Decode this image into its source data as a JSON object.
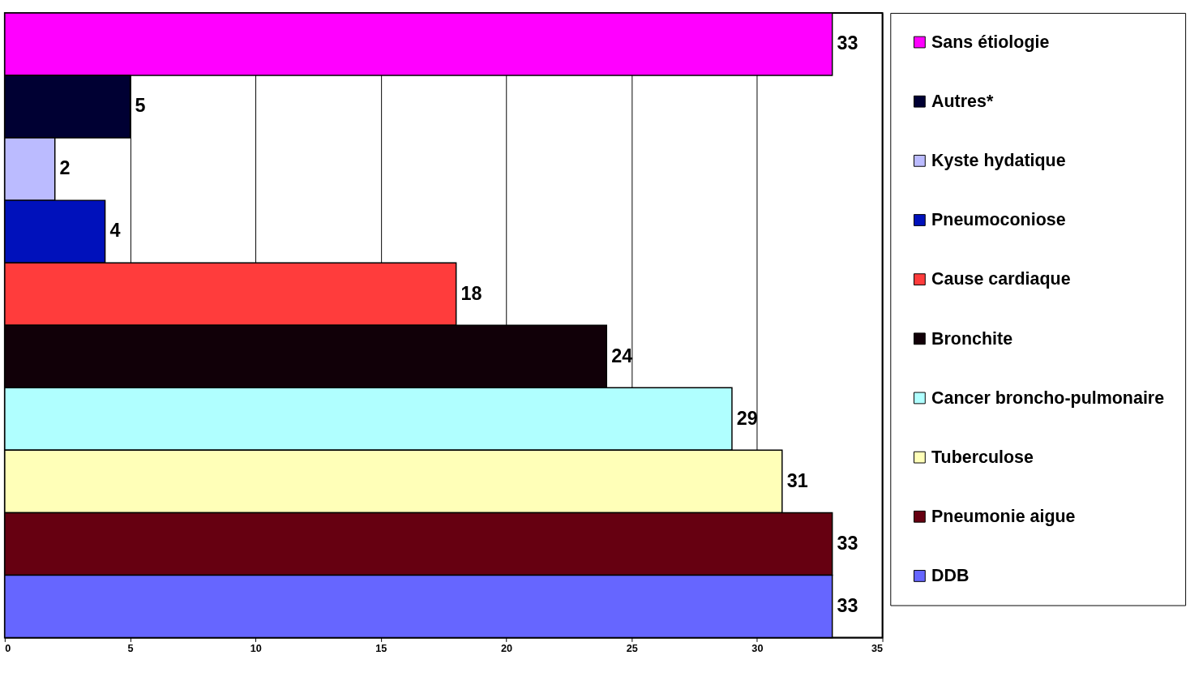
{
  "chart_data": {
    "type": "bar",
    "orientation": "horizontal",
    "categories": [
      null,
      null,
      null,
      null,
      null,
      null,
      null,
      null,
      null,
      null
    ],
    "series": [
      {
        "name": "Sans étiologie",
        "color": "#ff00ff",
        "values": [
          33,
          null,
          null,
          null,
          null,
          null,
          null,
          null,
          null,
          null
        ]
      },
      {
        "name": "Autres*",
        "color": "#000033",
        "values": [
          null,
          5,
          null,
          null,
          null,
          null,
          null,
          null,
          null,
          null
        ]
      },
      {
        "name": "Kyste hydatique",
        "color": "#bbbbff",
        "values": [
          null,
          null,
          2,
          null,
          null,
          null,
          null,
          null,
          null,
          null
        ]
      },
      {
        "name": "Pneumoconiose",
        "color": "#0011bb",
        "values": [
          null,
          null,
          null,
          4,
          null,
          null,
          null,
          null,
          null,
          null
        ]
      },
      {
        "name": "Cause cardiaque",
        "color": "#ff3c3c",
        "values": [
          null,
          null,
          null,
          null,
          18,
          null,
          null,
          null,
          null,
          null
        ]
      },
      {
        "name": "Bronchite",
        "color": "#110008",
        "values": [
          null,
          null,
          null,
          null,
          null,
          24,
          null,
          null,
          null,
          null
        ]
      },
      {
        "name": "Cancer broncho-pulmonaire",
        "color": "#b0ffff",
        "values": [
          null,
          null,
          null,
          null,
          null,
          null,
          29,
          null,
          null,
          null
        ]
      },
      {
        "name": "Tuberculose",
        "color": "#ffffb8",
        "values": [
          null,
          null,
          null,
          null,
          null,
          null,
          null,
          31,
          null,
          null
        ]
      },
      {
        "name": "Pneumonie aigue",
        "color": "#660011",
        "values": [
          null,
          null,
          null,
          null,
          null,
          null,
          null,
          null,
          33,
          null
        ]
      },
      {
        "name": "DDB",
        "color": "#6666ff",
        "values": [
          null,
          null,
          null,
          null,
          null,
          null,
          null,
          null,
          null,
          33
        ]
      }
    ],
    "xlim": [
      0,
      35
    ],
    "xticks": [
      0,
      5,
      10,
      15,
      20,
      25,
      30,
      35
    ],
    "grid": "x",
    "legend": "right",
    "data_labels": true,
    "tick_labels": "x"
  }
}
